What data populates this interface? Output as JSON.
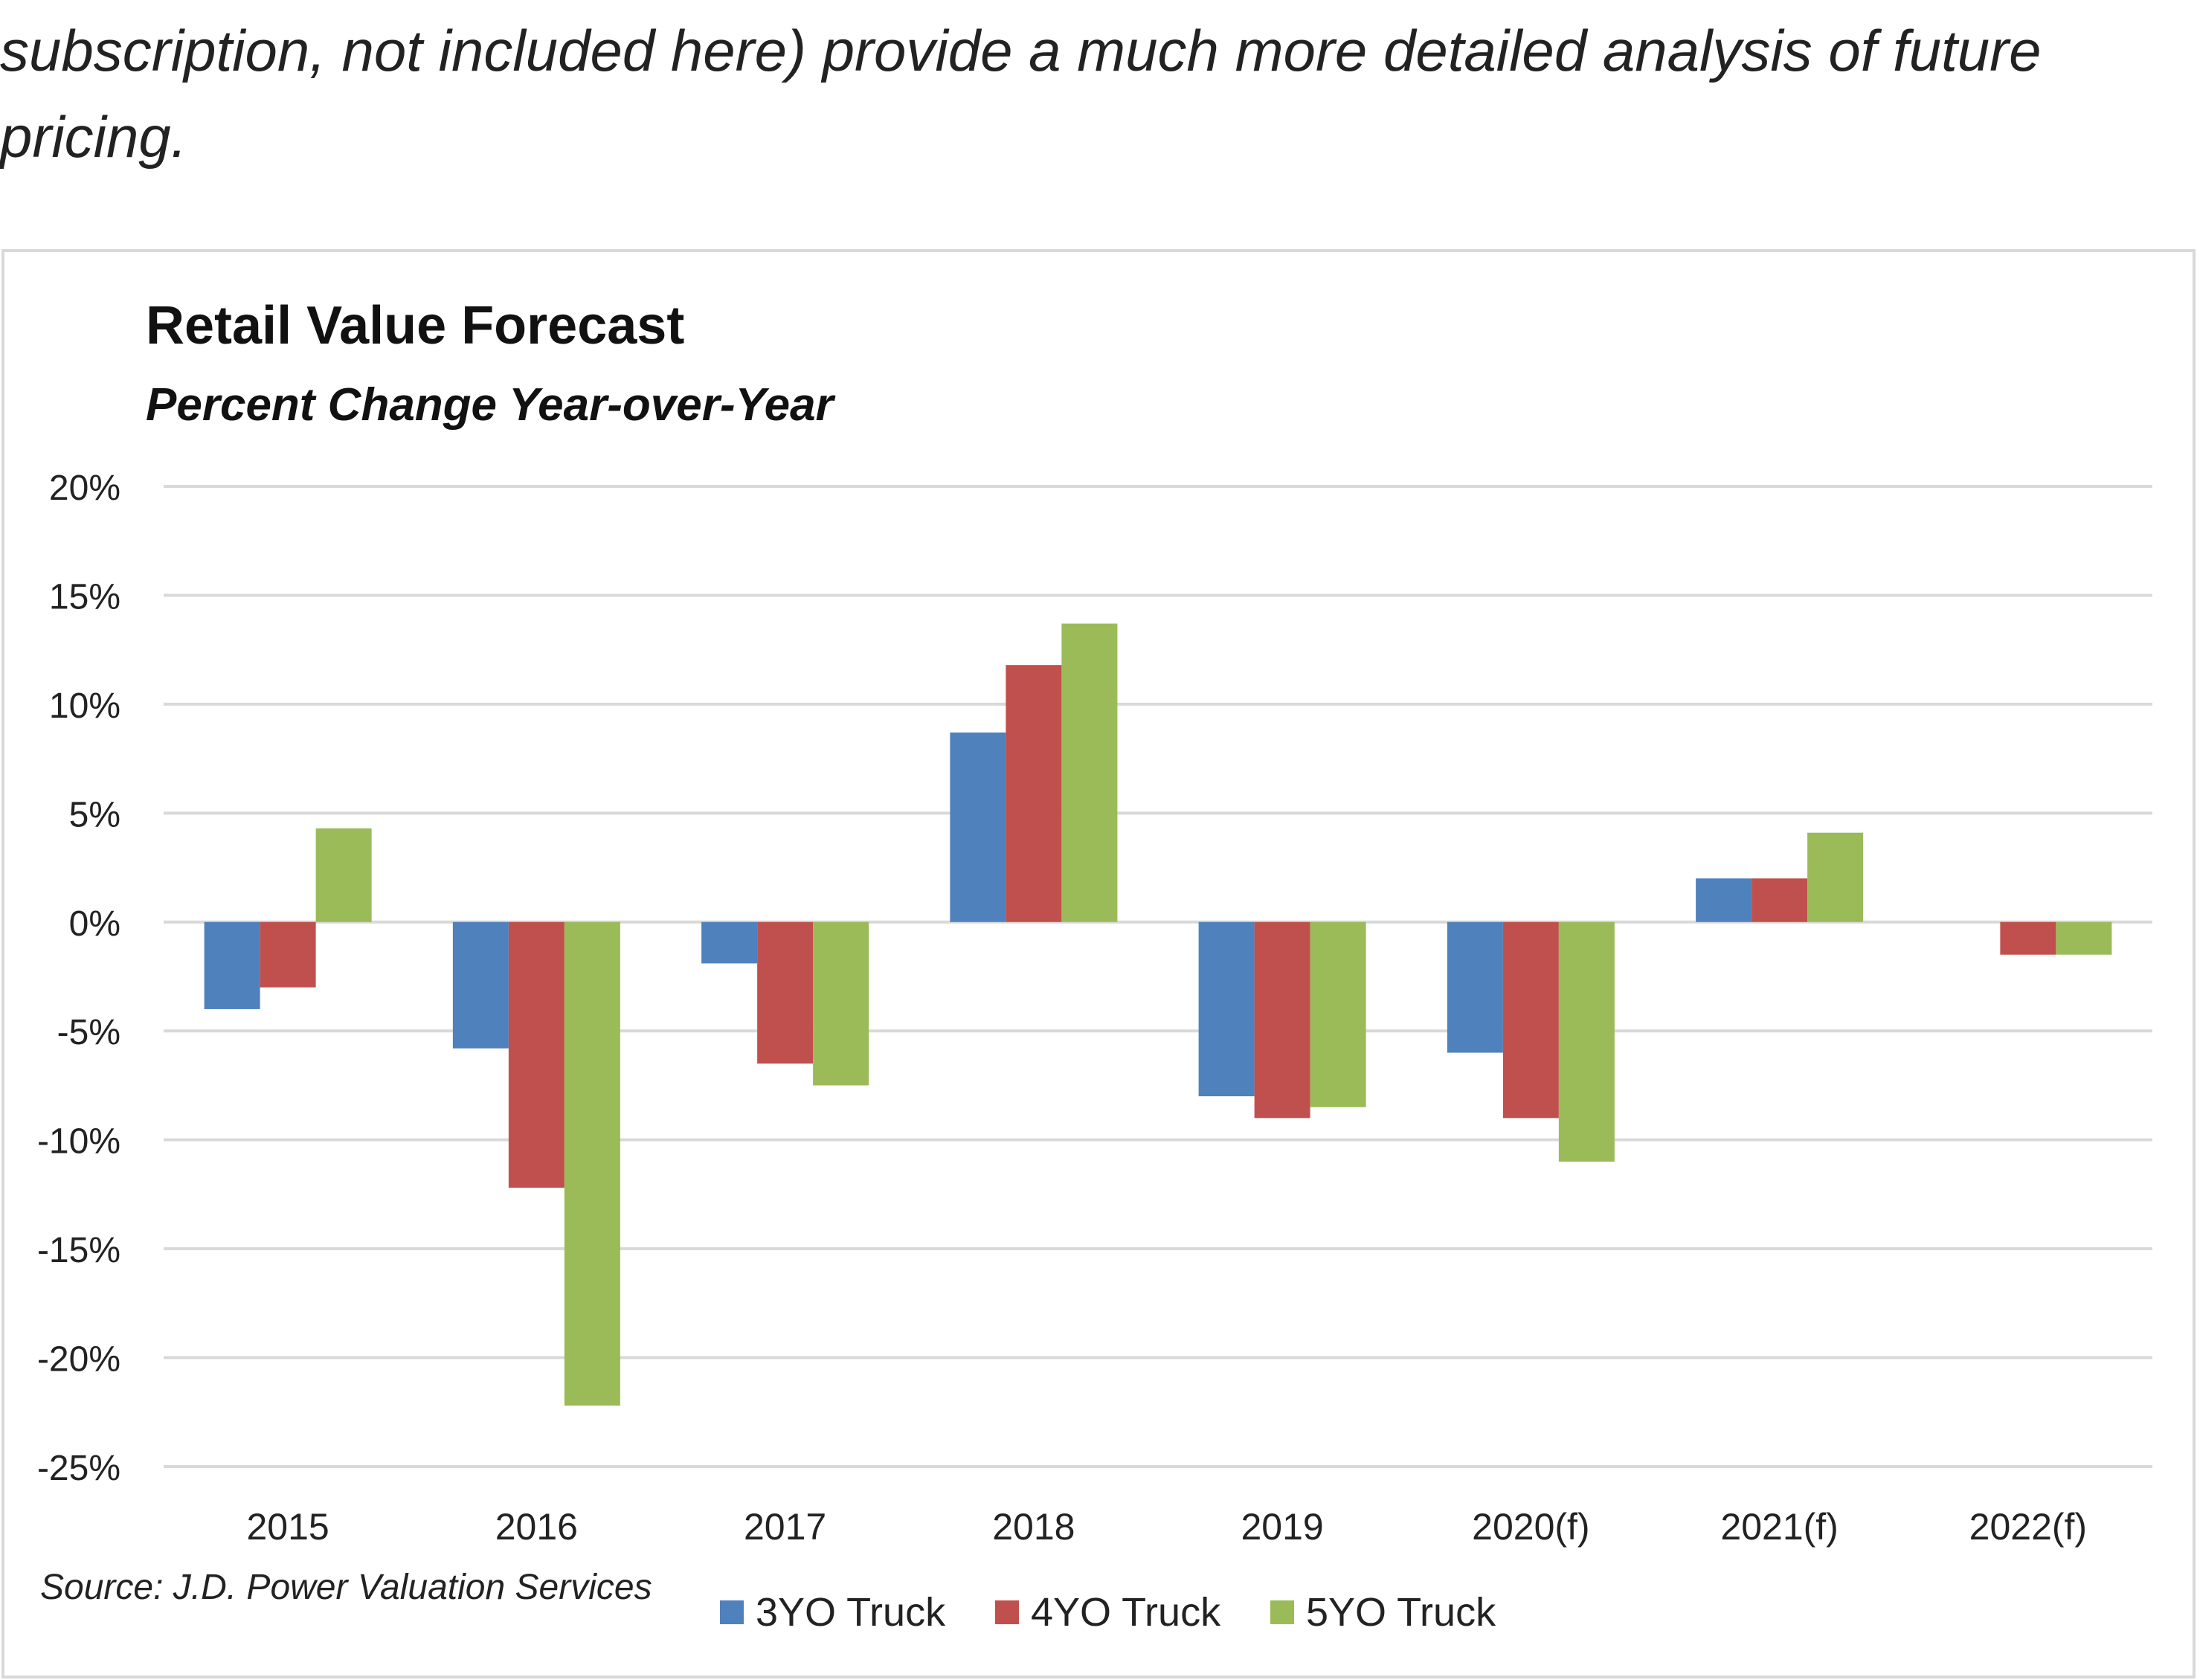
{
  "article": {
    "text": "subscription, not included here) provide a much more detailed analysis of future pricing."
  },
  "chart_data": {
    "type": "bar",
    "title": "Retail Value Forecast",
    "subtitle": "Percent Change Year-over-Year",
    "source": "Source: J.D. Power Valuation Services",
    "categories": [
      "2015",
      "2016",
      "2017",
      "2018",
      "2019",
      "2020(f)",
      "2021(f)",
      "2022(f)"
    ],
    "series": [
      {
        "name": "3YO Truck",
        "color": "#4F81BD",
        "values": [
          -4.0,
          -5.8,
          -1.9,
          8.7,
          -8.0,
          -6.0,
          2.0,
          0.0
        ]
      },
      {
        "name": "4YO Truck",
        "color": "#C0504D",
        "values": [
          -3.0,
          -12.2,
          -6.5,
          11.8,
          -9.0,
          -9.0,
          2.0,
          -1.5
        ]
      },
      {
        "name": "5YO Truck",
        "color": "#9BBB59",
        "values": [
          4.3,
          -22.2,
          -7.5,
          13.7,
          -8.5,
          -11.0,
          4.1,
          -1.5
        ]
      }
    ],
    "ylim": [
      -25,
      20
    ],
    "yticks": [
      20,
      15,
      10,
      5,
      0,
      -5,
      -10,
      -15,
      -20,
      -25
    ],
    "ytick_labels": [
      "20%",
      "15%",
      "10%",
      "5%",
      "0%",
      "-5%",
      "-10%",
      "-15%",
      "-20%",
      "-25%"
    ],
    "grid": true,
    "legend_position": "bottom-center"
  }
}
